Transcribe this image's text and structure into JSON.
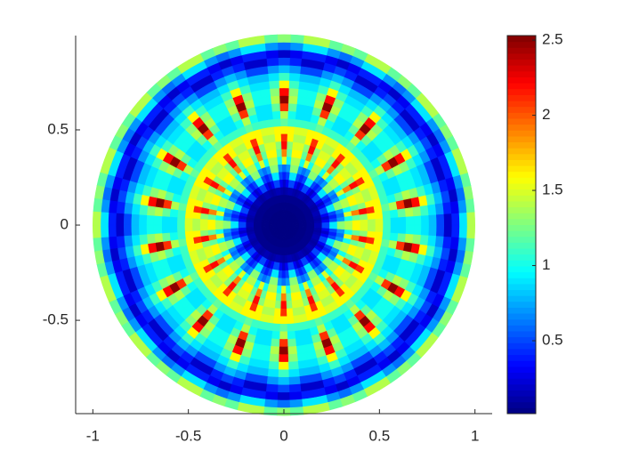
{
  "chart_data": {
    "type": "polar-heatmap",
    "colormap": "jet",
    "angular_period": 20,
    "r": [
      0.02,
      0.06,
      0.1,
      0.14,
      0.18,
      0.22,
      0.26,
      0.3,
      0.34,
      0.38,
      0.42,
      0.46,
      0.5,
      0.54,
      0.58,
      0.62,
      0.66,
      0.7,
      0.74,
      0.78,
      0.82,
      0.86,
      0.9,
      0.94,
      0.98
    ],
    "theta": [
      2,
      6,
      10,
      14,
      18
    ],
    "values": [
      [
        0.02,
        0.02,
        0.02,
        0.02,
        0.02
      ],
      [
        0.02,
        0.02,
        0.02,
        0.02,
        0.02
      ],
      [
        0.03,
        0.03,
        0.03,
        0.03,
        0.03
      ],
      [
        0.05,
        0.05,
        0.05,
        0.05,
        0.05
      ],
      [
        0.15,
        0.12,
        0.1,
        0.12,
        0.15
      ],
      [
        0.5,
        0.3,
        0.2,
        0.3,
        0.5
      ],
      [
        0.9,
        0.5,
        0.4,
        0.5,
        0.9
      ],
      [
        1.3,
        0.7,
        0.6,
        0.7,
        1.3
      ],
      [
        1.4,
        1.0,
        1.5,
        1.0,
        1.4
      ],
      [
        1.6,
        1.2,
        1.9,
        1.2,
        1.6
      ],
      [
        1.5,
        1.3,
        2.2,
        1.3,
        1.5
      ],
      [
        1.4,
        1.6,
        2.1,
        1.6,
        1.4
      ],
      [
        1.5,
        1.6,
        1.6,
        1.6,
        1.5
      ],
      [
        1.1,
        1.1,
        1.2,
        1.1,
        1.1
      ],
      [
        0.9,
        1.0,
        1.4,
        1.0,
        0.9
      ],
      [
        0.9,
        1.2,
        2.1,
        1.2,
        0.9
      ],
      [
        1.0,
        1.4,
        2.5,
        1.4,
        1.0
      ],
      [
        1.0,
        1.3,
        2.2,
        1.3,
        1.0
      ],
      [
        0.9,
        1.1,
        1.6,
        1.1,
        0.9
      ],
      [
        0.8,
        0.9,
        1.1,
        0.9,
        0.8
      ],
      [
        0.5,
        0.7,
        0.8,
        0.7,
        0.5
      ],
      [
        0.2,
        0.4,
        0.5,
        0.4,
        0.2
      ],
      [
        0.4,
        0.3,
        0.2,
        0.3,
        0.4
      ],
      [
        0.9,
        0.7,
        0.6,
        0.7,
        0.9
      ],
      [
        1.4,
        1.2,
        1.3,
        1.2,
        1.4
      ]
    ],
    "xlim": [
      -1.09,
      1.09
    ],
    "ylim": [
      -0.99,
      0.995
    ],
    "xticks": [
      -1,
      -0.5,
      0,
      0.5,
      1
    ],
    "yticks": [
      -0.5,
      0,
      0.5
    ],
    "clim": [
      0.015,
      2.53
    ],
    "cticks": [
      0.5,
      1,
      1.5,
      2,
      2.5
    ]
  }
}
